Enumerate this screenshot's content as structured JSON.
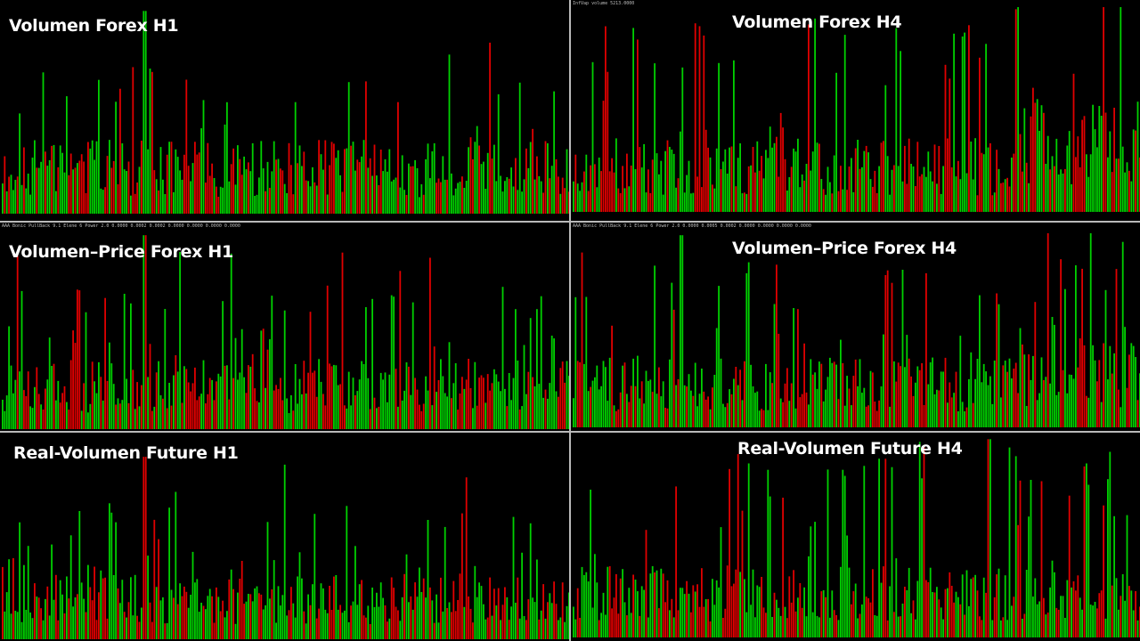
{
  "colors": {
    "background": "#000000",
    "up": "#00d000",
    "down": "#e00000",
    "separator": "#b9b9b9"
  },
  "panels": [
    {
      "id": "vf-h1",
      "title": "Volumen Forex H1",
      "indicator_label": "",
      "baseline": "up",
      "spike": "middle"
    },
    {
      "id": "vf-h4",
      "title": "Volumen Forex H4",
      "indicator_label": "InfVap volume 5213.0000",
      "baseline": "up",
      "spike": "late"
    },
    {
      "id": "vp-h1",
      "title": "Volumen–Price Forex H1",
      "indicator_label": "AAA Bonic PullBack 9.1 Elene 6 Power 2.0 0.0000 0.0002 0.0002 0.0000 0.0000 0.0000 0.0000",
      "baseline": "up",
      "spike": "middle"
    },
    {
      "id": "vp-h4",
      "title": "Volumen–Price Forex H4",
      "indicator_label": "AAA Bonic PullBack 9.1 Elene 6 Power 2.0 0.0000 0.0005 0.0002 0.0000 0.0000 0.0000 0.0000",
      "baseline": "up",
      "spike": "early"
    },
    {
      "id": "rv-h1",
      "title": "Real-Volumen Future H1",
      "indicator_label": "",
      "baseline": "up",
      "spike": "middle"
    },
    {
      "id": "rv-h4",
      "title": "Real-Volumen Future H4",
      "indicator_label": "",
      "baseline": "up",
      "spike": "mixed"
    }
  ]
}
